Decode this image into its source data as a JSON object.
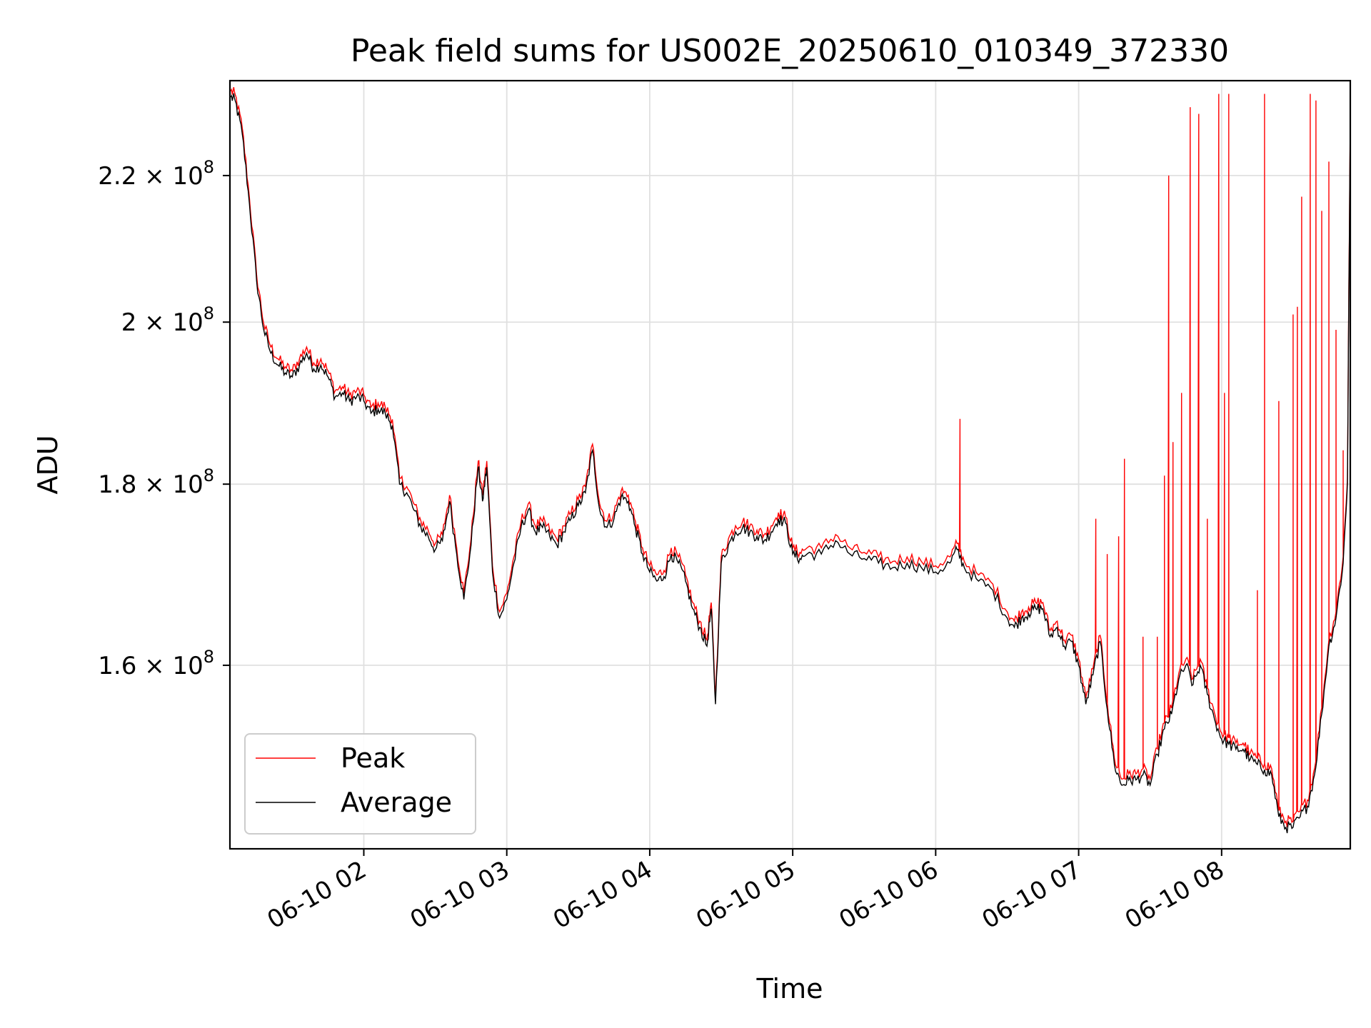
{
  "chart_data": {
    "type": "line",
    "title": "Peak field sums for US002E_20250610_010349_372330",
    "xlabel": "Time",
    "ylabel": "ADU",
    "x_tick_labels": [
      "06-10 02",
      "06-10 03",
      "06-10 04",
      "06-10 05",
      "06-10 06",
      "06-10 07",
      "06-10 08"
    ],
    "x_ticks_hours": [
      2,
      3,
      4,
      5,
      6,
      7,
      8
    ],
    "y_scale": "log",
    "y_ticks": [
      {
        "value": 160000000,
        "mantissa": "1.6",
        "exp": "8"
      },
      {
        "value": 180000000,
        "mantissa": "1.8",
        "exp": "8"
      },
      {
        "value": 200000000,
        "mantissa": "2",
        "exp": "8"
      },
      {
        "value": 220000000,
        "mantissa": "2.2",
        "exp": "8"
      }
    ],
    "xlim_hours": [
      1.0636,
      8.9
    ],
    "ylim": [
      142000000,
      234000000
    ],
    "grid": true,
    "legend_position": "lower-left",
    "series": [
      {
        "name": "Peak",
        "color": "#ff0000"
      },
      {
        "name": "Average",
        "color": "#000000"
      }
    ],
    "average_points": [
      [
        1.07,
        231500000.0
      ],
      [
        1.1,
        231000000.0
      ],
      [
        1.15,
        226000000.0
      ],
      [
        1.2,
        216000000.0
      ],
      [
        1.25,
        205500000.0
      ],
      [
        1.3,
        199000000.0
      ],
      [
        1.35,
        196000000.0
      ],
      [
        1.4,
        194500000.0
      ],
      [
        1.45,
        193500000.0
      ],
      [
        1.5,
        193000000.0
      ],
      [
        1.55,
        194500000.0
      ],
      [
        1.6,
        196000000.0
      ],
      [
        1.65,
        194000000.0
      ],
      [
        1.7,
        194500000.0
      ],
      [
        1.75,
        193000000.0
      ],
      [
        1.8,
        190500000.0
      ],
      [
        1.85,
        191000000.0
      ],
      [
        1.9,
        190000000.0
      ],
      [
        1.95,
        190500000.0
      ],
      [
        2.0,
        190000000.0
      ],
      [
        2.05,
        188500000.0
      ],
      [
        2.1,
        189000000.0
      ],
      [
        2.15,
        188500000.0
      ],
      [
        2.2,
        187000000.0
      ],
      [
        2.25,
        180000000.0
      ],
      [
        2.3,
        179000000.0
      ],
      [
        2.35,
        177000000.0
      ],
      [
        2.4,
        175000000.0
      ],
      [
        2.45,
        174000000.0
      ],
      [
        2.5,
        172500000.0
      ],
      [
        2.55,
        173500000.0
      ],
      [
        2.6,
        178000000.0
      ],
      [
        2.65,
        172000000.0
      ],
      [
        2.7,
        167000000.0
      ],
      [
        2.75,
        173000000.0
      ],
      [
        2.8,
        182000000.0
      ],
      [
        2.83,
        178000000.0
      ],
      [
        2.86,
        182000000.0
      ],
      [
        2.9,
        170000000.0
      ],
      [
        2.95,
        165000000.0
      ],
      [
        3.0,
        167000000.0
      ],
      [
        3.05,
        171000000.0
      ],
      [
        3.1,
        175000000.0
      ],
      [
        3.15,
        177000000.0
      ],
      [
        3.2,
        174500000.0
      ],
      [
        3.25,
        175000000.0
      ],
      [
        3.3,
        174000000.0
      ],
      [
        3.35,
        173000000.0
      ],
      [
        3.4,
        174500000.0
      ],
      [
        3.45,
        176000000.0
      ],
      [
        3.5,
        177500000.0
      ],
      [
        3.55,
        179000000.0
      ],
      [
        3.6,
        184000000.0
      ],
      [
        3.65,
        177000000.0
      ],
      [
        3.7,
        175000000.0
      ],
      [
        3.75,
        176000000.0
      ],
      [
        3.8,
        178500000.0
      ],
      [
        3.85,
        178000000.0
      ],
      [
        3.9,
        175000000.0
      ],
      [
        3.95,
        172000000.0
      ],
      [
        4.0,
        170000000.0
      ],
      [
        4.05,
        169000000.0
      ],
      [
        4.1,
        169500000.0
      ],
      [
        4.15,
        172000000.0
      ],
      [
        4.2,
        171000000.0
      ],
      [
        4.25,
        169000000.0
      ],
      [
        4.3,
        166000000.0
      ],
      [
        4.35,
        164000000.0
      ],
      [
        4.4,
        162000000.0
      ],
      [
        4.43,
        166000000.0
      ],
      [
        4.46,
        156000000.0
      ],
      [
        4.5,
        171000000.0
      ],
      [
        4.55,
        173000000.0
      ],
      [
        4.6,
        174500000.0
      ],
      [
        4.65,
        175000000.0
      ],
      [
        4.7,
        174500000.0
      ],
      [
        4.75,
        174000000.0
      ],
      [
        4.8,
        173500000.0
      ],
      [
        4.85,
        174500000.0
      ],
      [
        4.9,
        176000000.0
      ],
      [
        4.95,
        175500000.0
      ],
      [
        5.0,
        172000000.0
      ],
      [
        5.05,
        171500000.0
      ],
      [
        5.1,
        172000000.0
      ],
      [
        5.2,
        172000000.0
      ],
      [
        5.3,
        173500000.0
      ],
      [
        5.4,
        172000000.0
      ],
      [
        5.5,
        171500000.0
      ],
      [
        5.6,
        171000000.0
      ],
      [
        5.7,
        170500000.0
      ],
      [
        5.8,
        171000000.0
      ],
      [
        5.9,
        170500000.0
      ],
      [
        6.0,
        170000000.0
      ],
      [
        6.1,
        171000000.0
      ],
      [
        6.15,
        172500000.0
      ],
      [
        6.2,
        170500000.0
      ],
      [
        6.3,
        169000000.0
      ],
      [
        6.4,
        168000000.0
      ],
      [
        6.5,
        165000000.0
      ],
      [
        6.55,
        164000000.0
      ],
      [
        6.6,
        165000000.0
      ],
      [
        6.65,
        165500000.0
      ],
      [
        6.7,
        166000000.0
      ],
      [
        6.75,
        166000000.0
      ],
      [
        6.8,
        163000000.0
      ],
      [
        6.85,
        164000000.0
      ],
      [
        6.9,
        162000000.0
      ],
      [
        6.95,
        162500000.0
      ],
      [
        7.0,
        160000000.0
      ],
      [
        7.05,
        156000000.0
      ],
      [
        7.1,
        159000000.0
      ],
      [
        7.15,
        162500000.0
      ],
      [
        7.2,
        155500000.0
      ],
      [
        7.25,
        150000000.0
      ],
      [
        7.3,
        148000000.0
      ],
      [
        7.35,
        148500000.0
      ],
      [
        7.4,
        148500000.0
      ],
      [
        7.45,
        149000000.0
      ],
      [
        7.5,
        148000000.0
      ],
      [
        7.55,
        151000000.0
      ],
      [
        7.6,
        153500000.0
      ],
      [
        7.65,
        155000000.0
      ],
      [
        7.7,
        158500000.0
      ],
      [
        7.75,
        160000000.0
      ],
      [
        7.8,
        158000000.0
      ],
      [
        7.85,
        160000000.0
      ],
      [
        7.9,
        157000000.0
      ],
      [
        7.95,
        154500000.0
      ],
      [
        8.0,
        152500000.0
      ],
      [
        8.05,
        152000000.0
      ],
      [
        8.1,
        151500000.0
      ],
      [
        8.15,
        151500000.0
      ],
      [
        8.2,
        150500000.0
      ],
      [
        8.25,
        150000000.0
      ],
      [
        8.3,
        149500000.0
      ],
      [
        8.35,
        149000000.0
      ],
      [
        8.4,
        145000000.0
      ],
      [
        8.45,
        144000000.0
      ],
      [
        8.5,
        144000000.0
      ],
      [
        8.55,
        145000000.0
      ],
      [
        8.6,
        146000000.0
      ],
      [
        8.65,
        149000000.0
      ],
      [
        8.7,
        155000000.0
      ],
      [
        8.75,
        162000000.0
      ],
      [
        8.8,
        165000000.0
      ],
      [
        8.85,
        171000000.0
      ],
      [
        8.88,
        180000000.0
      ],
      [
        8.9,
        227000000.0
      ]
    ],
    "peak_spikes": [
      [
        6.17,
        187800000.0
      ],
      [
        7.12,
        176000000.0
      ],
      [
        7.2,
        172000000.0
      ],
      [
        7.28,
        174000000.0
      ],
      [
        7.32,
        183000000.0
      ],
      [
        7.45,
        163000000.0
      ],
      [
        7.55,
        163000000.0
      ],
      [
        7.6,
        181000000.0
      ],
      [
        7.63,
        220000000.0
      ],
      [
        7.66,
        185000000.0
      ],
      [
        7.72,
        191000000.0
      ],
      [
        7.78,
        230000000.0
      ],
      [
        7.84,
        229000000.0
      ],
      [
        7.9,
        176000000.0
      ],
      [
        7.98,
        232000000.0
      ],
      [
        8.02,
        191000000.0
      ],
      [
        8.05,
        232000000.0
      ],
      [
        8.25,
        168000000.0
      ],
      [
        8.3,
        232000000.0
      ],
      [
        8.4,
        190000000.0
      ],
      [
        8.5,
        201000000.0
      ],
      [
        8.53,
        202000000.0
      ],
      [
        8.56,
        217000000.0
      ],
      [
        8.62,
        232000000.0
      ],
      [
        8.66,
        231000000.0
      ],
      [
        8.7,
        215000000.0
      ],
      [
        8.75,
        222000000.0
      ],
      [
        8.8,
        199000000.0
      ],
      [
        8.85,
        184000000.0
      ]
    ]
  }
}
